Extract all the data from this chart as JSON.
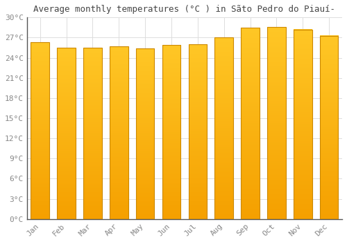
{
  "months": [
    "Jan",
    "Feb",
    "Mar",
    "Apr",
    "May",
    "Jun",
    "Jul",
    "Aug",
    "Sep",
    "Oct",
    "Nov",
    "Dec"
  ],
  "values": [
    26.3,
    25.5,
    25.5,
    25.7,
    25.4,
    25.9,
    26.0,
    27.0,
    28.5,
    28.6,
    28.2,
    27.3
  ],
  "title": "Average monthly temperatures (°C ) in Sãto Pedro do Piauí-",
  "ylim": [
    0,
    30
  ],
  "yticks": [
    0,
    3,
    6,
    9,
    12,
    15,
    18,
    21,
    24,
    27,
    30
  ],
  "bar_color_top": "#FFC726",
  "bar_color_bottom": "#F5A000",
  "bar_edge_color": "#CC8800",
  "bg_color": "#FFFFFF",
  "grid_color": "#DDDDDD",
  "title_fontsize": 9,
  "tick_fontsize": 8,
  "font_family": "monospace",
  "bar_width": 0.7
}
